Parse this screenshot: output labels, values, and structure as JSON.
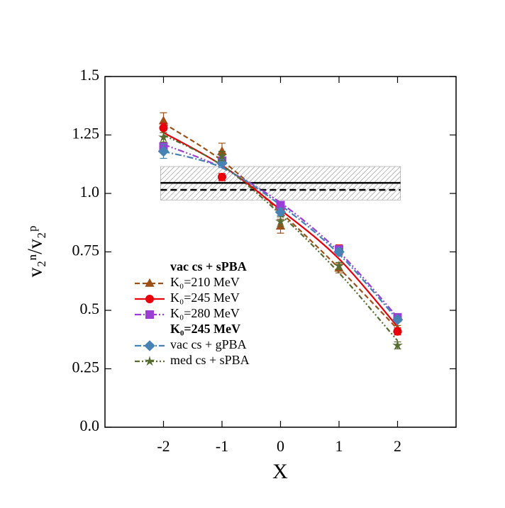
{
  "chart_data": {
    "type": "line",
    "x_label": "X",
    "y_label": "v₂ⁿ/v₂ᵖ",
    "x": [
      -2,
      -1,
      0,
      1,
      2
    ],
    "xlim": [
      -3,
      3
    ],
    "xticks": [
      -2,
      -1,
      0,
      1,
      2
    ],
    "ylim": [
      0,
      1.5
    ],
    "yticks": [
      {
        "value": 0,
        "label": "0.0"
      },
      0.25,
      0.5,
      0.75,
      {
        "value": 1,
        "label": "1.0"
      },
      1.25,
      {
        "value": 1.5,
        "label": "1.5"
      }
    ],
    "legend_headings": [
      "vac cs + sPBA",
      "K₀=245 MeV"
    ],
    "reference": {
      "solid": 1.045,
      "dashed": 1.015,
      "band": [
        0.972,
        1.115
      ],
      "band_x": [
        -2.05,
        2.05
      ]
    },
    "series": [
      {
        "name": "K₀=210 MeV",
        "color": "#9c4f16",
        "marker": "triangle",
        "dash": "7,4",
        "values": [
          1.31,
          1.18,
          0.86,
          0.68,
          0.42
        ],
        "errors": [
          0.035,
          0.035,
          0.03,
          0.02,
          0.015
        ],
        "fit": [
          1.3,
          1.14,
          0.92,
          0.68,
          0.42
        ]
      },
      {
        "name": "K₀=245 MeV",
        "color": "#e8000b",
        "marker": "circle",
        "dash": "none",
        "values": [
          1.28,
          1.07,
          0.93,
          0.76,
          0.41
        ],
        "errors": [
          0.02,
          0.015,
          0.015,
          0.02,
          0.015
        ],
        "fit": [
          1.26,
          1.12,
          0.93,
          0.72,
          0.43
        ]
      },
      {
        "name": "K₀=280 MeV",
        "color": "#9b3fd4",
        "marker": "square",
        "dash": "9,3,2,3,2,3",
        "values": [
          1.2,
          1.14,
          0.95,
          0.76,
          0.47
        ],
        "errors": [
          0.015,
          0.015,
          0.015,
          0.015,
          0.01
        ],
        "fit": [
          1.21,
          1.11,
          0.96,
          0.75,
          0.47
        ]
      },
      {
        "name": "vac cs + gPBA",
        "color": "#4682b4",
        "marker": "diamond",
        "dash": "9,3,2,3",
        "values": [
          1.18,
          1.13,
          0.92,
          0.75,
          0.46
        ],
        "errors": [
          0.03,
          0.02,
          0.015,
          0.015,
          0.01
        ],
        "fit": [
          1.18,
          1.11,
          0.95,
          0.74,
          0.46
        ]
      },
      {
        "name": "med cs + sPBA",
        "color": "#556b2f",
        "marker": "star",
        "dash": "7,3,2,3,2,3",
        "values": [
          1.24,
          1.16,
          0.88,
          0.69,
          0.35
        ],
        "errors": [
          0.02,
          0.02,
          0.02,
          0.015,
          0.015
        ],
        "fit": [
          1.25,
          1.12,
          0.91,
          0.66,
          0.37
        ]
      }
    ]
  }
}
